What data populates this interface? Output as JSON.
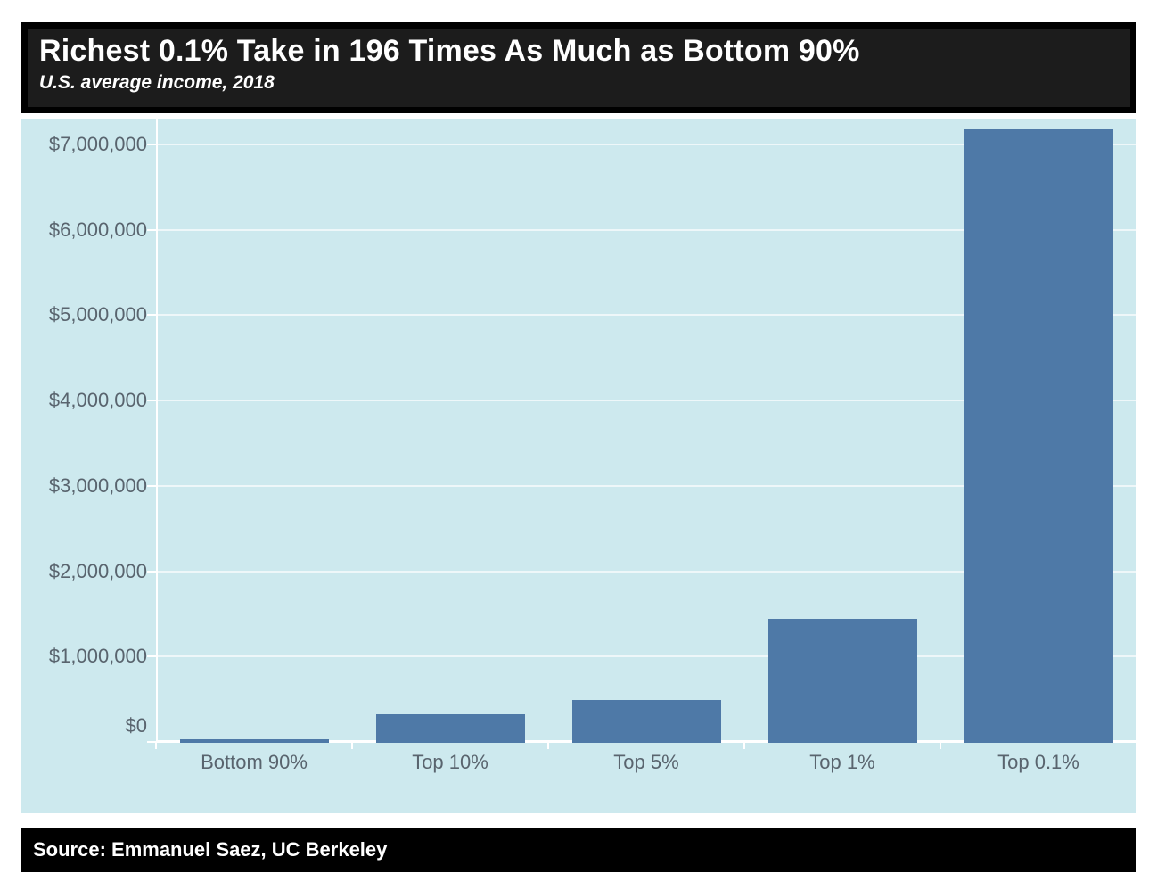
{
  "chart_data": {
    "type": "bar",
    "title": "Richest 0.1% Take in 196 Times As Much as Bottom 90%",
    "subtitle": "U.S. average income, 2018",
    "source": "Source: Emmanuel Saez, UC Berkeley",
    "categories": [
      "Bottom 90%",
      "Top 10%",
      "Top 5%",
      "Top 1%",
      "Top 0.1%"
    ],
    "values": [
      36700,
      330000,
      500000,
      1450000,
      7190000
    ],
    "y_ticks": [
      0,
      1000000,
      2000000,
      3000000,
      4000000,
      5000000,
      6000000,
      7000000
    ],
    "y_tick_labels": [
      "$0",
      "$1,000,000",
      "$2,000,000",
      "$3,000,000",
      "$4,000,000",
      "$5,000,000",
      "$6,000,000",
      "$7,000,000"
    ],
    "ylim": [
      0,
      7310000
    ],
    "xlabel": "",
    "ylabel": "",
    "grid": true,
    "legend_position": "none",
    "colors": {
      "bar": "#4e79a7",
      "plot_background": "#cde9ee",
      "grid_line": "rgba(255,255,255,0.65)",
      "axis_line": "#ffffff",
      "tick_text": "#59646e",
      "title_band_background": "#1c1c1c",
      "title_text": "#ffffff",
      "source_band_background": "#000000",
      "source_text": "#ffffff"
    }
  }
}
